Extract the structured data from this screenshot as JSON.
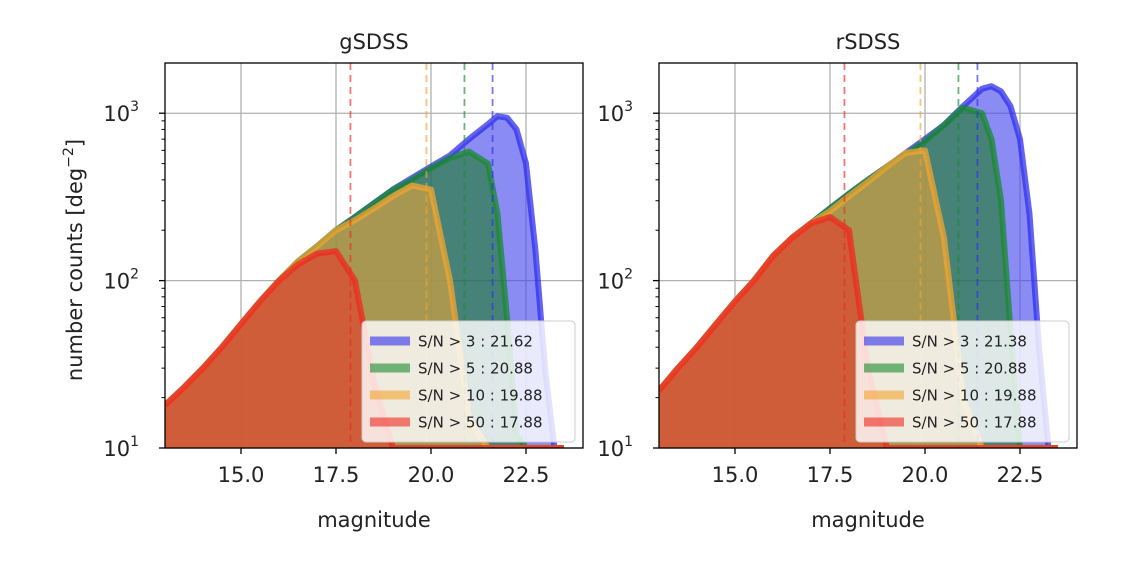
{
  "chart_data": {
    "type": "area",
    "ylabel": "number counts [deg$^{-2}$]",
    "ylabel_main": "number counts [deg",
    "ylabel_sup": "−2",
    "ylabel_close": "]",
    "xlabel": "magnitude",
    "xlim": [
      13.0,
      24.0
    ],
    "ylim_log10": [
      1.0,
      3.3
    ],
    "x_ticks": [
      15.0,
      17.5,
      20.0,
      22.5
    ],
    "x_tick_labels": [
      "15.0",
      "17.5",
      "20.0",
      "22.5"
    ],
    "y_ticks": [
      1,
      2,
      3
    ],
    "y_tick_base": "10",
    "y_tick_exponents": [
      "1",
      "2",
      "3"
    ],
    "legend_position": "lower right",
    "series_style": [
      {
        "color": "#4444ee",
        "line": "#2f2fee"
      },
      {
        "color": "#1c7d2c",
        "line": "#1a8a30"
      },
      {
        "color": "#e4a53a",
        "line": "#f0a530"
      },
      {
        "color": "#e83a2a",
        "line": "#ee2a20"
      }
    ],
    "panels": [
      {
        "title": "gSDSS",
        "x": [
          13.0,
          13.5,
          14.0,
          14.5,
          15.0,
          15.5,
          16.0,
          16.5,
          17.0,
          17.5,
          18.0,
          18.5,
          19.0,
          19.5,
          20.0,
          20.5,
          21.0,
          21.5,
          21.75,
          22.0,
          22.25,
          22.5,
          22.75,
          23.0,
          23.25,
          23.5
        ],
        "series": [
          {
            "name": "S/N > 3",
            "legend_label": "S/N > 3 : 21.62",
            "limit": 21.62,
            "values": [
              18,
              23,
              30,
              40,
              55,
              75,
              100,
              130,
              160,
              200,
              240,
              290,
              350,
              410,
              480,
              560,
              700,
              860,
              960,
              940,
              800,
              500,
              150,
              30,
              10,
              10
            ]
          },
          {
            "name": "S/N > 5",
            "legend_label": "S/N > 5 : 20.88",
            "limit": 20.88,
            "values": [
              18,
              23,
              30,
              40,
              55,
              75,
              100,
              130,
              160,
              200,
              240,
              290,
              350,
              400,
              470,
              540,
              590,
              500,
              250,
              60,
              12,
              10,
              10,
              10,
              10,
              10
            ]
          },
          {
            "name": "S/N > 10",
            "legend_label": "S/N > 10 : 19.88",
            "limit": 19.88,
            "values": [
              18,
              23,
              30,
              40,
              55,
              75,
              100,
              130,
              160,
              200,
              230,
              270,
              320,
              370,
              350,
              100,
              15,
              10,
              10,
              10,
              10,
              10,
              10,
              10,
              10,
              10
            ]
          },
          {
            "name": "S/N > 50",
            "legend_label": "S/N > 50 : 17.88",
            "limit": 17.88,
            "values": [
              18,
              23,
              30,
              40,
              55,
              75,
              100,
              125,
              145,
              150,
              100,
              25,
              10,
              10,
              10,
              10,
              10,
              10,
              10,
              10,
              10,
              10,
              10,
              10,
              10,
              10
            ]
          }
        ]
      },
      {
        "title": "rSDSS",
        "x": [
          13.0,
          13.5,
          14.0,
          14.5,
          15.0,
          15.5,
          16.0,
          16.5,
          17.0,
          17.5,
          18.0,
          18.5,
          19.0,
          19.5,
          20.0,
          20.5,
          21.0,
          21.5,
          21.75,
          22.0,
          22.25,
          22.5,
          22.75,
          23.0,
          23.25,
          23.5
        ],
        "series": [
          {
            "name": "S/N > 3",
            "legend_label": "S/N > 3 : 21.38",
            "limit": 21.38,
            "values": [
              22,
              30,
              40,
              55,
              75,
              100,
              140,
              180,
              220,
              270,
              330,
              400,
              480,
              580,
              700,
              850,
              1100,
              1400,
              1450,
              1350,
              1100,
              700,
              250,
              40,
              10,
              10
            ]
          },
          {
            "name": "S/N > 5",
            "legend_label": "S/N > 5 : 20.88",
            "limit": 20.88,
            "values": [
              22,
              30,
              40,
              55,
              75,
              100,
              140,
              180,
              220,
              270,
              330,
              400,
              480,
              570,
              680,
              850,
              1080,
              1000,
              700,
              300,
              50,
              10,
              10,
              10,
              10,
              10
            ]
          },
          {
            "name": "S/N > 10",
            "legend_label": "S/N > 10 : 19.88",
            "limit": 19.88,
            "values": [
              22,
              30,
              40,
              55,
              75,
              100,
              140,
              180,
              220,
              260,
              320,
              390,
              480,
              580,
              600,
              180,
              20,
              10,
              10,
              10,
              10,
              10,
              10,
              10,
              10,
              10
            ]
          },
          {
            "name": "S/N > 50",
            "legend_label": "S/N > 50 : 17.88",
            "limit": 17.88,
            "values": [
              22,
              30,
              40,
              55,
              75,
              100,
              140,
              180,
              220,
              240,
              200,
              30,
              10,
              10,
              10,
              10,
              10,
              10,
              10,
              10,
              10,
              10,
              10,
              10,
              10,
              10
            ]
          }
        ]
      }
    ]
  }
}
